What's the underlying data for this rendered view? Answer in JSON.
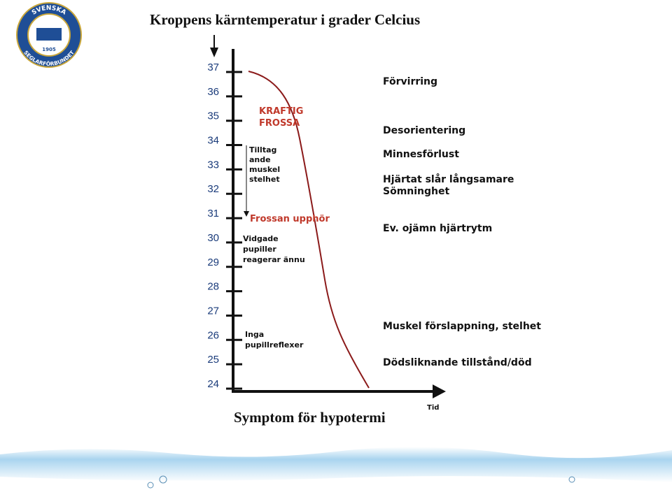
{
  "logo": {
    "ring_top": "SVENSKA",
    "ring_bottom": "SEGLARFÖRBUNDET",
    "year": "1905"
  },
  "title": "Kroppens kärntemperatur i grader Celcius",
  "footer_title": "Symptom för hypotermi",
  "x_axis_label": "Tid",
  "temperature_ticks": [
    "37",
    "36",
    "35",
    "34",
    "33",
    "32",
    "31",
    "30",
    "29",
    "28",
    "27",
    "26",
    "25",
    "24"
  ],
  "annotations": {
    "shivering": [
      "KRAFTIG",
      "FROSSA"
    ],
    "stiffness": [
      "Tilltag",
      "ande",
      "muskel",
      "stelhet"
    ],
    "shivering_stops": "Frossan upphör",
    "pupils": [
      "Vidgade",
      "pupiller",
      "reagerar ännu"
    ],
    "no_reflex": [
      "Inga",
      "pupillreflexer"
    ]
  },
  "symptoms": [
    {
      "text": "Förvirring"
    },
    {
      "text": "Desorientering"
    },
    {
      "text": "Minnesförlust"
    },
    {
      "text": "Hjärtat slår långsamare"
    },
    {
      "text": "Sömninghet"
    },
    {
      "text": "Ev. ojämn hjärtrytm"
    },
    {
      "text": "Muskel förslappning, stelhet"
    },
    {
      "text": "Dödsliknande tillstånd/död"
    }
  ]
}
